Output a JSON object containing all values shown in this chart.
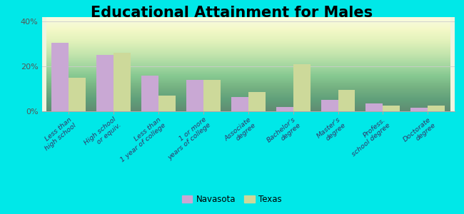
{
  "title": "Educational Attainment for Males",
  "categories": [
    "Less than\nhigh school",
    "High school\nor equiv.",
    "Less than\n1 year of college",
    "1 or more\nyears of college",
    "Associate\ndegree",
    "Bachelor's\ndegree",
    "Master's\ndegree",
    "Profess.\nschool degree",
    "Doctorate\ndegree"
  ],
  "navasota": [
    30.5,
    25.0,
    16.0,
    14.0,
    6.5,
    2.0,
    5.0,
    3.5,
    1.5
  ],
  "texas": [
    15.0,
    26.0,
    7.0,
    14.0,
    8.5,
    21.0,
    9.5,
    2.5,
    2.5
  ],
  "navasota_color": "#c9a8d4",
  "texas_color": "#cdd99a",
  "background_top": "#f0f5e0",
  "background_bottom": "#e0ead0",
  "outer_background": "#00e8e8",
  "ylim": [
    0,
    42
  ],
  "yticks": [
    0,
    20,
    40
  ],
  "ytick_labels": [
    "0%",
    "20%",
    "40%"
  ],
  "bar_width": 0.38,
  "title_fontsize": 15,
  "legend_labels": [
    "Navasota",
    "Texas"
  ]
}
